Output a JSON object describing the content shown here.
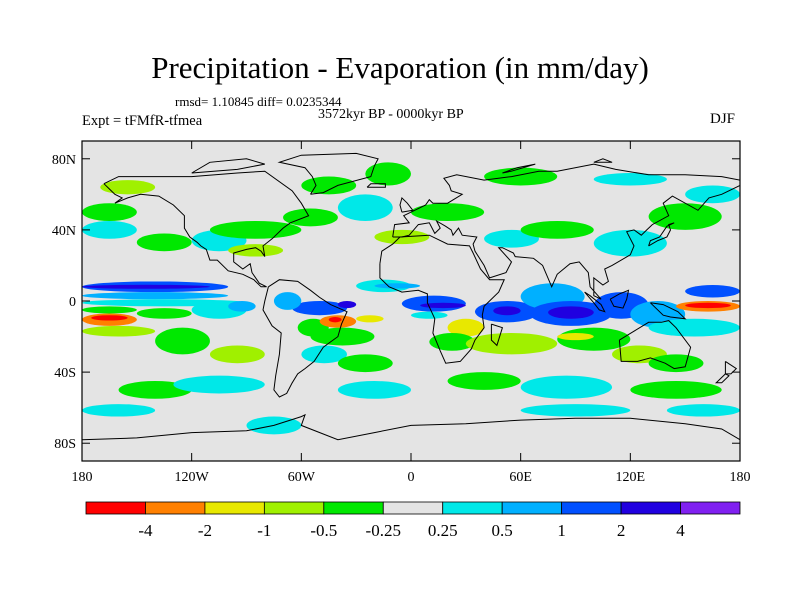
{
  "title": "Precipitation - Evaporation (in mm/day)",
  "stats_text": "rmsd= 1.10845 diff= 0.0235344",
  "period_text": "3572kyr BP - 0000kyr BP",
  "expt_text": "Expt = tFMfR-tfmea",
  "season_text": "DJF",
  "map": {
    "lon_range": [
      -180,
      180
    ],
    "lat_range": [
      -90,
      90
    ],
    "lon_ticks": [
      {
        "value": -180,
        "label": "180"
      },
      {
        "value": -120,
        "label": "120W"
      },
      {
        "value": -60,
        "label": "60W"
      },
      {
        "value": 0,
        "label": "0"
      },
      {
        "value": 60,
        "label": "60E"
      },
      {
        "value": 120,
        "label": "120E"
      },
      {
        "value": 180,
        "label": "180"
      }
    ],
    "lat_ticks": [
      {
        "value": 80,
        "label": "80N"
      },
      {
        "value": 40,
        "label": "40N"
      },
      {
        "value": 0,
        "label": "0"
      },
      {
        "value": -40,
        "label": "40S"
      },
      {
        "value": -80,
        "label": "80S"
      }
    ],
    "background_color": "#e4e4e4",
    "field_regions": [
      {
        "level": "blue",
        "lon": [
          -180,
          -100
        ],
        "lat": [
          5,
          11
        ]
      },
      {
        "level": "darkblue",
        "lon": [
          -180,
          -110
        ],
        "lat": [
          7,
          9
        ]
      },
      {
        "level": "lightblue",
        "lon": [
          -180,
          -100
        ],
        "lat": [
          1,
          5
        ]
      },
      {
        "level": "cyan",
        "lon": [
          -180,
          -90
        ],
        "lat": [
          -3,
          1
        ]
      },
      {
        "level": "green",
        "lon": [
          -180,
          -150
        ],
        "lat": [
          -7,
          -3
        ]
      },
      {
        "level": "orange",
        "lon": [
          -180,
          -150
        ],
        "lat": [
          -14,
          -7
        ]
      },
      {
        "level": "red",
        "lon": [
          -175,
          -155
        ],
        "lat": [
          -11,
          -8
        ]
      },
      {
        "level": "green",
        "lon": [
          -150,
          -120
        ],
        "lat": [
          -10,
          -4
        ]
      },
      {
        "level": "lightgreen",
        "lon": [
          -180,
          -140
        ],
        "lat": [
          -20,
          -14
        ]
      },
      {
        "level": "green",
        "lon": [
          -140,
          -110
        ],
        "lat": [
          -30,
          -15
        ]
      },
      {
        "level": "lightgreen",
        "lon": [
          -110,
          -80
        ],
        "lat": [
          -35,
          -25
        ]
      },
      {
        "level": "cyan",
        "lon": [
          -120,
          -90
        ],
        "lat": [
          -10,
          0
        ]
      },
      {
        "level": "lightblue",
        "lon": [
          -100,
          -85
        ],
        "lat": [
          -6,
          0
        ]
      },
      {
        "level": "blue",
        "lon": [
          -65,
          -35
        ],
        "lat": [
          -8,
          0
        ]
      },
      {
        "level": "lightblue",
        "lon": [
          -75,
          -60
        ],
        "lat": [
          -5,
          5
        ]
      },
      {
        "level": "darkblue",
        "lon": [
          -40,
          -30
        ],
        "lat": [
          -4,
          0
        ]
      },
      {
        "level": "green",
        "lon": [
          -62,
          -45
        ],
        "lat": [
          -20,
          -10
        ]
      },
      {
        "level": "orange",
        "lon": [
          -50,
          -30
        ],
        "lat": [
          -15,
          -8
        ]
      },
      {
        "level": "red",
        "lon": [
          -45,
          -38
        ],
        "lat": [
          -12,
          -9
        ]
      },
      {
        "level": "yellow",
        "lon": [
          -30,
          -15
        ],
        "lat": [
          -12,
          -8
        ]
      },
      {
        "level": "green",
        "lon": [
          -55,
          -20
        ],
        "lat": [
          -25,
          -15
        ]
      },
      {
        "level": "cyan",
        "lon": [
          -60,
          -35
        ],
        "lat": [
          -35,
          -25
        ]
      },
      {
        "level": "green",
        "lon": [
          -40,
          -10
        ],
        "lat": [
          -40,
          -30
        ]
      },
      {
        "level": "cyan",
        "lon": [
          -30,
          0
        ],
        "lat": [
          5,
          12
        ]
      },
      {
        "level": "lightblue",
        "lon": [
          -20,
          5
        ],
        "lat": [
          7,
          10
        ]
      },
      {
        "level": "blue",
        "lon": [
          -5,
          30
        ],
        "lat": [
          -6,
          3
        ]
      },
      {
        "level": "darkblue",
        "lon": [
          5,
          30
        ],
        "lat": [
          -4,
          -1
        ]
      },
      {
        "level": "cyan",
        "lon": [
          0,
          20
        ],
        "lat": [
          -10,
          -6
        ]
      },
      {
        "level": "blue",
        "lon": [
          35,
          70
        ],
        "lat": [
          -12,
          0
        ]
      },
      {
        "level": "darkblue",
        "lon": [
          45,
          60
        ],
        "lat": [
          -8,
          -3
        ]
      },
      {
        "level": "lightblue",
        "lon": [
          60,
          95
        ],
        "lat": [
          -5,
          10
        ]
      },
      {
        "level": "blue",
        "lon": [
          65,
          110
        ],
        "lat": [
          -14,
          0
        ]
      },
      {
        "level": "darkblue",
        "lon": [
          75,
          100
        ],
        "lat": [
          -10,
          -3
        ]
      },
      {
        "level": "blue",
        "lon": [
          100,
          130
        ],
        "lat": [
          -10,
          5
        ]
      },
      {
        "level": "lightblue",
        "lon": [
          120,
          150
        ],
        "lat": [
          -15,
          0
        ]
      },
      {
        "level": "cyan",
        "lon": [
          130,
          180
        ],
        "lat": [
          -20,
          -10
        ]
      },
      {
        "level": "blue",
        "lon": [
          150,
          180
        ],
        "lat": [
          2,
          9
        ]
      },
      {
        "level": "orange",
        "lon": [
          145,
          180
        ],
        "lat": [
          -6,
          0
        ]
      },
      {
        "level": "red",
        "lon": [
          150,
          175
        ],
        "lat": [
          -4,
          -1
        ]
      },
      {
        "level": "yellow",
        "lon": [
          20,
          40
        ],
        "lat": [
          -20,
          -10
        ]
      },
      {
        "level": "green",
        "lon": [
          10,
          35
        ],
        "lat": [
          -28,
          -18
        ]
      },
      {
        "level": "lightgreen",
        "lon": [
          30,
          80
        ],
        "lat": [
          -30,
          -18
        ]
      },
      {
        "level": "green",
        "lon": [
          80,
          120
        ],
        "lat": [
          -28,
          -15
        ]
      },
      {
        "level": "yellow",
        "lon": [
          80,
          100
        ],
        "lat": [
          -22,
          -18
        ]
      },
      {
        "level": "lightgreen",
        "lon": [
          110,
          140
        ],
        "lat": [
          -35,
          -25
        ]
      },
      {
        "level": "green",
        "lon": [
          130,
          160
        ],
        "lat": [
          -40,
          -30
        ]
      },
      {
        "level": "green",
        "lon": [
          -150,
          -120
        ],
        "lat": [
          28,
          38
        ]
      },
      {
        "level": "cyan",
        "lon": [
          -120,
          -90
        ],
        "lat": [
          28,
          40
        ]
      },
      {
        "level": "green",
        "lon": [
          -110,
          -60
        ],
        "lat": [
          35,
          45
        ]
      },
      {
        "level": "lightgreen",
        "lon": [
          -100,
          -70
        ],
        "lat": [
          25,
          32
        ]
      },
      {
        "level": "green",
        "lon": [
          -70,
          -40
        ],
        "lat": [
          42,
          52
        ]
      },
      {
        "level": "cyan",
        "lon": [
          -40,
          -10
        ],
        "lat": [
          45,
          60
        ]
      },
      {
        "level": "green",
        "lon": [
          -60,
          -30
        ],
        "lat": [
          60,
          70
        ]
      },
      {
        "level": "green",
        "lon": [
          -25,
          0
        ],
        "lat": [
          65,
          78
        ]
      },
      {
        "level": "lightgreen",
        "lon": [
          -20,
          10
        ],
        "lat": [
          32,
          40
        ]
      },
      {
        "level": "green",
        "lon": [
          0,
          40
        ],
        "lat": [
          45,
          55
        ]
      },
      {
        "level": "cyan",
        "lon": [
          40,
          70
        ],
        "lat": [
          30,
          40
        ]
      },
      {
        "level": "green",
        "lon": [
          60,
          100
        ],
        "lat": [
          35,
          45
        ]
      },
      {
        "level": "cyan",
        "lon": [
          100,
          140
        ],
        "lat": [
          25,
          40
        ]
      },
      {
        "level": "green",
        "lon": [
          130,
          170
        ],
        "lat": [
          40,
          55
        ]
      },
      {
        "level": "cyan",
        "lon": [
          150,
          180
        ],
        "lat": [
          55,
          65
        ]
      },
      {
        "level": "green",
        "lon": [
          -180,
          -150
        ],
        "lat": [
          45,
          55
        ]
      },
      {
        "level": "cyan",
        "lon": [
          -180,
          -150
        ],
        "lat": [
          35,
          45
        ]
      },
      {
        "level": "lightgreen",
        "lon": [
          -170,
          -140
        ],
        "lat": [
          60,
          68
        ]
      },
      {
        "level": "green",
        "lon": [
          40,
          80
        ],
        "lat": [
          65,
          75
        ]
      },
      {
        "level": "cyan",
        "lon": [
          100,
          140
        ],
        "lat": [
          65,
          72
        ]
      },
      {
        "level": "green",
        "lon": [
          -160,
          -120
        ],
        "lat": [
          -55,
          -45
        ]
      },
      {
        "level": "cyan",
        "lon": [
          -130,
          -80
        ],
        "lat": [
          -52,
          -42
        ]
      },
      {
        "level": "cyan",
        "lon": [
          -40,
          0
        ],
        "lat": [
          -55,
          -45
        ]
      },
      {
        "level": "green",
        "lon": [
          20,
          60
        ],
        "lat": [
          -50,
          -40
        ]
      },
      {
        "level": "cyan",
        "lon": [
          60,
          110
        ],
        "lat": [
          -55,
          -42
        ]
      },
      {
        "level": "green",
        "lon": [
          120,
          170
        ],
        "lat": [
          -55,
          -45
        ]
      },
      {
        "level": "cyan",
        "lon": [
          -180,
          -140
        ],
        "lat": [
          -65,
          -58
        ]
      },
      {
        "level": "cyan",
        "lon": [
          60,
          120
        ],
        "lat": [
          -65,
          -58
        ]
      },
      {
        "level": "cyan",
        "lon": [
          140,
          180
        ],
        "lat": [
          -65,
          -58
        ]
      },
      {
        "level": "cyan",
        "lon": [
          -90,
          -60
        ],
        "lat": [
          -75,
          -65
        ]
      }
    ]
  },
  "colorbar": {
    "colors": [
      "#ff0000",
      "#ff8000",
      "#e8e800",
      "#a0f000",
      "#00e800",
      "#e4e4e4",
      "#00e8e8",
      "#00b0ff",
      "#0050ff",
      "#2000e0",
      "#8020f0"
    ],
    "labels": [
      "-4",
      "-2",
      "-1",
      "-0.5",
      "-0.25",
      "0.25",
      "0.5",
      "1",
      "2",
      "4"
    ]
  },
  "level_colors": {
    "red": "#ff0000",
    "orange": "#ff8000",
    "yellow": "#e8e800",
    "lightgreen": "#a0f000",
    "green": "#00e800",
    "cyan": "#00e8e8",
    "lightblue": "#00b0ff",
    "blue": "#0050ff",
    "darkblue": "#2000e0",
    "purple": "#8020f0"
  }
}
